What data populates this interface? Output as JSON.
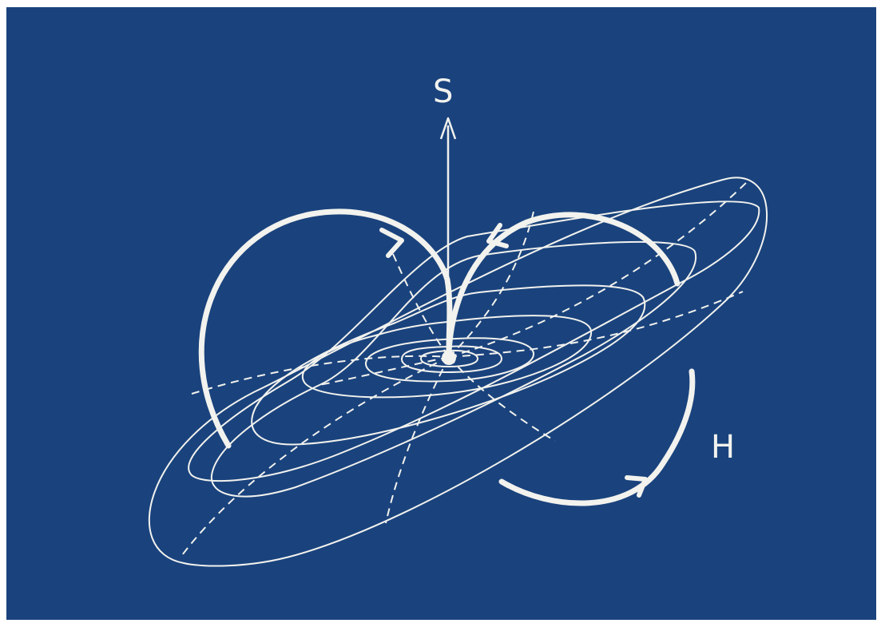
{
  "diagram": {
    "labels": {
      "s": "S",
      "h": "H"
    },
    "colors": {
      "background": "#1a437d",
      "ink": "#f2f2ee"
    }
  }
}
